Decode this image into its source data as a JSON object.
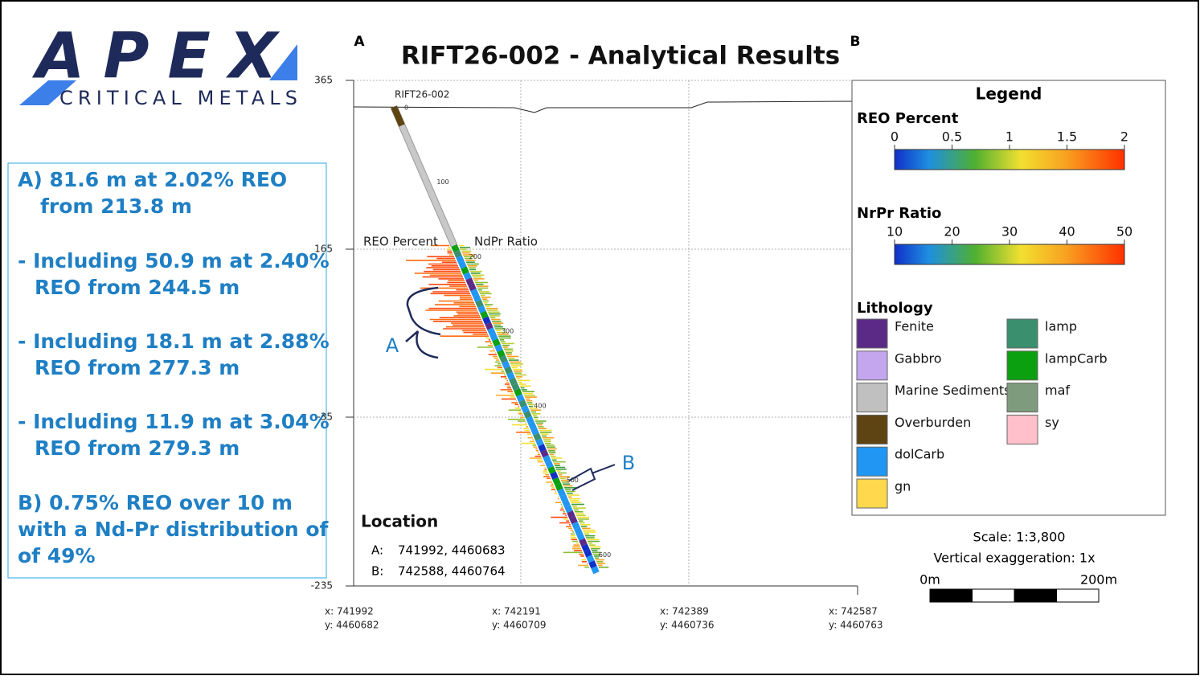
{
  "logo": {
    "name": "APEX",
    "subtitle": "CRITICAL METALS"
  },
  "highlights": [
    {
      "lines": [
        "A) 81.6 m at 2.02% REO",
        "from 213.8 m"
      ]
    },
    {
      "lines": [
        "- Including 50.9 m at 2.40%",
        "REO from 244.5 m"
      ]
    },
    {
      "lines": [
        "- Including 18.1 m at 2.88%",
        "REO from 277.3 m"
      ]
    },
    {
      "lines": [
        "- Including 11.9 m at 3.04%",
        "REO from 279.3 m"
      ]
    },
    {
      "lines": [
        "B) 0.75% REO over 10 m",
        "with a Nd-Pr distribution of",
        "of 49%"
      ]
    }
  ],
  "section": {
    "title": "RIFT26-002 - Analytical Results",
    "start": "A",
    "end": "B",
    "elevation_ticks": [
      365,
      165,
      -35,
      -235
    ],
    "easting_ticks": [
      {
        "x": "x: 741992",
        "y": "y: 4460682"
      },
      {
        "x": "x: 742191",
        "y": "y: 4460709"
      },
      {
        "x": "x: 742389",
        "y": "y: 4460736"
      },
      {
        "x": "x: 742587",
        "y": "y: 4460763"
      }
    ],
    "hole": "RIFT26-002",
    "depth_ticks": [
      0,
      100,
      200,
      300,
      400,
      500,
      600
    ],
    "reo_label": "REO Percent",
    "ndpr_label": "NdPr Ratio",
    "annotations": [
      "A",
      "B"
    ]
  },
  "location": {
    "title": "Location",
    "rows": [
      {
        "key": "A:",
        "value": "741992, 4460683"
      },
      {
        "key": "B:",
        "value": "742588, 4460764"
      }
    ]
  },
  "legend": {
    "title": "Legend",
    "reo": {
      "title": "REO Percent",
      "ticks": [
        0,
        0.5,
        1,
        1.5,
        2
      ]
    },
    "ndpr": {
      "title": "NrPr Ratio",
      "ticks": [
        10,
        20,
        30,
        40,
        50
      ]
    },
    "lithology": {
      "title": "Lithology",
      "items": [
        {
          "name": "Fenite",
          "color": "#5b2a86"
        },
        {
          "name": "Gabbro",
          "color": "#c3a6ee"
        },
        {
          "name": "Marine Sediments",
          "color": "#c0c0c0"
        },
        {
          "name": "Overburden",
          "color": "#5e4412"
        },
        {
          "name": "dolCarb",
          "color": "#2196f3"
        },
        {
          "name": "gn",
          "color": "#ffd84d"
        },
        {
          "name": "lamp",
          "color": "#3a8f6e"
        },
        {
          "name": "lampCarb",
          "color": "#0aa010"
        },
        {
          "name": "maf",
          "color": "#7e9b7e"
        },
        {
          "name": "sy",
          "color": "#ffc0cb"
        }
      ]
    }
  },
  "scale": {
    "ratio": "Scale: 1:3,800",
    "exaggeration": "Vertical exaggeration: 1x",
    "start": "0m",
    "end": "200m"
  }
}
